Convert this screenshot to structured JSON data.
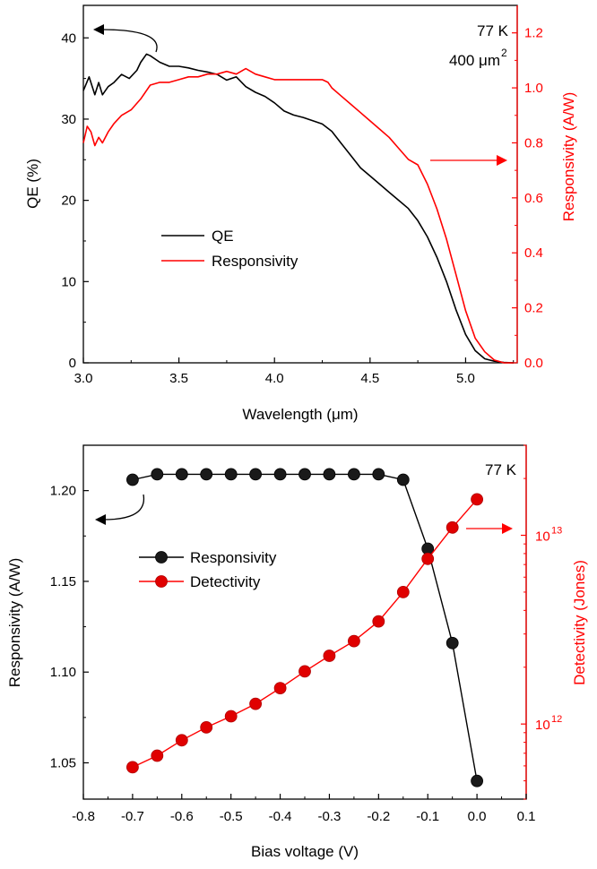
{
  "chart_data": [
    {
      "type": "line",
      "xlabel": "Wavelength (μm)",
      "ylabel_left": "QE (%)",
      "ylabel_right": "Responsivity (A/W)",
      "xlim": [
        3.0,
        5.27
      ],
      "ylim_left": [
        0,
        44
      ],
      "ylim_right": [
        0,
        1.3
      ],
      "xticks": [
        "3.0",
        "3.5",
        "4.0",
        "4.5",
        "5.0"
      ],
      "yticks_left": [
        "0",
        "10",
        "20",
        "30",
        "40"
      ],
      "yticks_right": [
        "0.0",
        "0.2",
        "0.4",
        "0.6",
        "0.8",
        "1.0",
        "1.2"
      ],
      "annotations": {
        "temp": "77 K",
        "area_prefix": "400 μm",
        "area_sup": "2"
      },
      "legend": {
        "placement": "center-left",
        "entries": [
          "QE",
          "Responsivity"
        ]
      },
      "colors": {
        "qe": "#000000",
        "responsivity": "#ff0000"
      },
      "series": [
        {
          "name": "QE",
          "axis": "left",
          "x": [
            3.0,
            3.03,
            3.06,
            3.08,
            3.1,
            3.13,
            3.16,
            3.2,
            3.24,
            3.28,
            3.3,
            3.33,
            3.35,
            3.4,
            3.45,
            3.5,
            3.55,
            3.6,
            3.65,
            3.7,
            3.75,
            3.8,
            3.85,
            3.9,
            3.95,
            4.0,
            4.05,
            4.1,
            4.15,
            4.2,
            4.25,
            4.3,
            4.35,
            4.4,
            4.45,
            4.5,
            4.55,
            4.6,
            4.65,
            4.7,
            4.75,
            4.8,
            4.85,
            4.9,
            4.95,
            5.0,
            5.05,
            5.1,
            5.15,
            5.2,
            5.25
          ],
          "y": [
            33.5,
            35.2,
            33.0,
            34.5,
            33.0,
            34.0,
            34.5,
            35.5,
            35.0,
            36.0,
            37.0,
            38.0,
            37.8,
            37.0,
            36.5,
            36.5,
            36.3,
            36.0,
            35.8,
            35.5,
            34.8,
            35.2,
            34.0,
            33.3,
            32.8,
            32.0,
            31.0,
            30.5,
            30.2,
            29.8,
            29.4,
            28.5,
            27.0,
            25.5,
            24.0,
            23.0,
            22.0,
            21.0,
            20.0,
            19.0,
            17.5,
            15.5,
            13.0,
            10.0,
            6.5,
            3.5,
            1.5,
            0.5,
            0.2,
            0.05,
            0.0
          ]
        },
        {
          "name": "Responsivity",
          "axis": "right",
          "x": [
            3.0,
            3.02,
            3.04,
            3.06,
            3.08,
            3.1,
            3.13,
            3.16,
            3.2,
            3.25,
            3.3,
            3.35,
            3.4,
            3.45,
            3.5,
            3.55,
            3.6,
            3.65,
            3.7,
            3.75,
            3.8,
            3.85,
            3.9,
            3.95,
            4.0,
            4.05,
            4.1,
            4.15,
            4.2,
            4.25,
            4.28,
            4.3,
            4.35,
            4.4,
            4.45,
            4.5,
            4.55,
            4.6,
            4.65,
            4.7,
            4.75,
            4.8,
            4.85,
            4.9,
            4.95,
            5.0,
            5.05,
            5.1,
            5.15,
            5.2,
            5.25
          ],
          "y": [
            0.8,
            0.86,
            0.84,
            0.79,
            0.82,
            0.8,
            0.84,
            0.87,
            0.9,
            0.92,
            0.96,
            1.01,
            1.02,
            1.02,
            1.03,
            1.04,
            1.04,
            1.05,
            1.05,
            1.06,
            1.05,
            1.07,
            1.05,
            1.04,
            1.03,
            1.03,
            1.03,
            1.03,
            1.03,
            1.03,
            1.02,
            1.0,
            0.97,
            0.94,
            0.91,
            0.88,
            0.85,
            0.82,
            0.78,
            0.74,
            0.72,
            0.65,
            0.56,
            0.45,
            0.32,
            0.19,
            0.09,
            0.04,
            0.01,
            0.0,
            0.0
          ]
        }
      ]
    },
    {
      "type": "line",
      "xlabel": "Bias voltage (V)",
      "ylabel_left": "Responsivity (A/W)",
      "ylabel_right": "Detectivity (Jones)",
      "xlim": [
        -0.8,
        0.1
      ],
      "ylim_left": [
        1.03,
        1.225
      ],
      "ylim_right_log": [
        400000000000.0,
        30000000000000.0
      ],
      "right_scale": "log",
      "xticks": [
        "-0.8",
        "-0.7",
        "-0.6",
        "-0.5",
        "-0.4",
        "-0.3",
        "-0.2",
        "-0.1",
        "0.0",
        "0.1"
      ],
      "yticks_left": [
        "1.05",
        "1.10",
        "1.15",
        "1.20"
      ],
      "yticks_right": [
        {
          "base": "10",
          "exp": "12",
          "value": 1000000000000.0
        },
        {
          "base": "10",
          "exp": "13",
          "value": 10000000000000.0
        }
      ],
      "annotations": {
        "temp": "77 K"
      },
      "legend": {
        "placement": "center-left",
        "entries": [
          "Responsivity",
          "Detectivity"
        ]
      },
      "colors": {
        "responsivity": "#000000",
        "detectivity": "#ff0000"
      },
      "series": [
        {
          "name": "Responsivity",
          "axis": "left",
          "x": [
            -0.7,
            -0.65,
            -0.6,
            -0.55,
            -0.5,
            -0.45,
            -0.4,
            -0.35,
            -0.3,
            -0.25,
            -0.2,
            -0.15,
            -0.1,
            -0.05,
            0.0
          ],
          "y": [
            1.206,
            1.209,
            1.209,
            1.209,
            1.209,
            1.209,
            1.209,
            1.209,
            1.209,
            1.209,
            1.209,
            1.206,
            1.168,
            1.116,
            1.04
          ]
        },
        {
          "name": "Detectivity",
          "axis": "right",
          "x": [
            -0.7,
            -0.65,
            -0.6,
            -0.55,
            -0.5,
            -0.45,
            -0.4,
            -0.35,
            -0.3,
            -0.25,
            -0.2,
            -0.15,
            -0.1,
            -0.05,
            0.0
          ],
          "y": [
            590000000000.0,
            680000000000.0,
            820000000000.0,
            960000000000.0,
            1100000000000.0,
            1280000000000.0,
            1550000000000.0,
            1900000000000.0,
            2300000000000.0,
            2750000000000.0,
            3500000000000.0,
            5000000000000.0,
            7500000000000.0,
            11000000000000.0,
            15500000000000.0
          ]
        }
      ]
    }
  ]
}
